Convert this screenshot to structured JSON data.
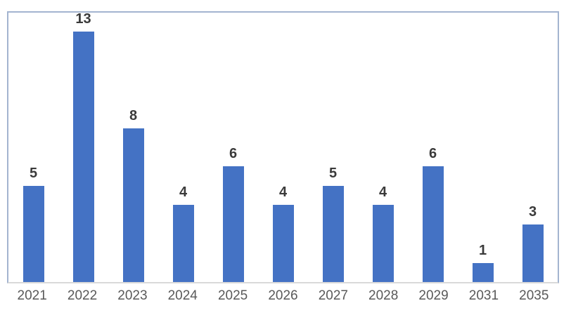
{
  "chart_data": {
    "type": "bar",
    "title": "",
    "xlabel": "",
    "ylabel": "",
    "categories": [
      "2021",
      "2022",
      "2023",
      "2024",
      "2025",
      "2026",
      "2027",
      "2028",
      "2029",
      "2031",
      "2035"
    ],
    "values": [
      5,
      13,
      8,
      4,
      6,
      4,
      5,
      4,
      6,
      1,
      3
    ],
    "ylim": [
      0,
      14
    ],
    "grid": false,
    "legend": false,
    "data_labels_shown": true
  },
  "colors": {
    "bar": "#4472C4",
    "plot_border": "#A3B4D0",
    "axis_line": "#D9D9D9",
    "value_label": "#3A3A3A",
    "tick_label": "#595959",
    "background": "#FFFFFF"
  }
}
